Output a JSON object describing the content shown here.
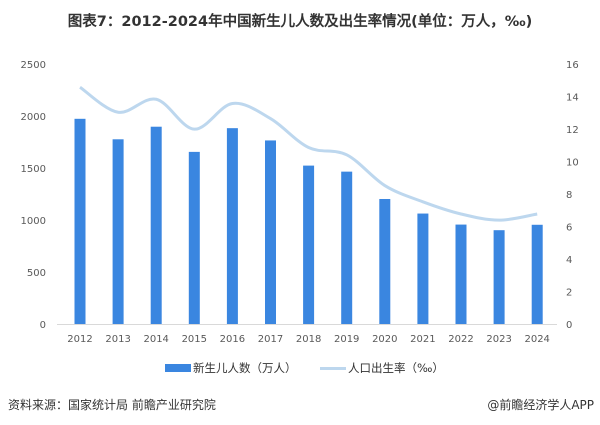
{
  "title": "图表7：2012-2024年中国新生儿人数及出生率情况(单位：万人，‰)",
  "source": "资料来源：国家统计局 前瞻产业研究院",
  "brand": "@前瞻经济学人APP",
  "chart_data": {
    "type": "bar+line",
    "categories": [
      "2012",
      "2013",
      "2014",
      "2015",
      "2016",
      "2017",
      "2018",
      "2019",
      "2020",
      "2021",
      "2022",
      "2023",
      "2024"
    ],
    "series": [
      {
        "name": "新生儿人数（万人）",
        "type": "bar",
        "axis": "left",
        "color": "#3A86E0",
        "values": [
          1973,
          1776,
          1897,
          1655,
          1883,
          1765,
          1523,
          1465,
          1202,
          1062,
          956,
          902,
          954
        ]
      },
      {
        "name": "人口出生率（‰）",
        "type": "line",
        "axis": "right",
        "color": "#BDD7EE",
        "values": [
          14.57,
          13.03,
          13.83,
          11.99,
          13.57,
          12.64,
          10.86,
          10.41,
          8.52,
          7.52,
          6.77,
          6.39,
          6.77
        ]
      }
    ],
    "ylim_left": [
      0,
      2500
    ],
    "yticks_left": [
      0,
      500,
      1000,
      1500,
      2000,
      2500
    ],
    "ylim_right": [
      0,
      16
    ],
    "yticks_right": [
      0,
      2,
      4,
      6,
      8,
      10,
      12,
      14,
      16
    ],
    "grid": false,
    "legend": "bottom"
  }
}
